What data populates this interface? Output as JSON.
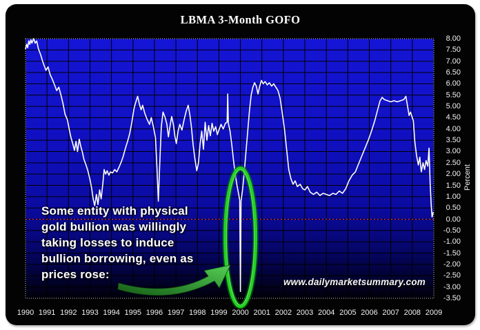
{
  "watermark": {
    "text": "www.dailymarketsummary.com"
  },
  "annotation": {
    "lines": [
      "Some entity with physical",
      "gold bullion was willingly",
      "taking losses to induce",
      "bullion borrowing, even as",
      "prices rose:"
    ],
    "ellipse": {
      "year": 2000.0,
      "value": -0.8,
      "color": "#22d122",
      "glow_color": "#0c6e0c"
    },
    "arrow_color_dark": "#155c15",
    "arrow_color_light": "#55cf55"
  },
  "chart_data": {
    "type": "line",
    "title": "LBMA 3-Month GOFO",
    "xlabel": "",
    "ylabel": "Percent",
    "xlim": [
      1990,
      2009
    ],
    "ylim": [
      -3.5,
      8.0
    ],
    "grid": true,
    "legend": "none",
    "line_color": "#ffffff",
    "grid_color": "#000000",
    "zero_line": {
      "value": 0.0,
      "color": "#ff2a2a",
      "style": "dotted"
    },
    "plot_border_color": "#c8c8c8",
    "plot_bg_stops": [
      [
        "0",
        "#1515d6"
      ],
      [
        "0.4",
        "#1010c0"
      ],
      [
        "0.65",
        "#0b0ba0"
      ],
      [
        "0.78",
        "#070778"
      ],
      [
        "0.88",
        "#030347"
      ],
      [
        "0.96",
        "#01011e"
      ],
      [
        "1",
        "#00000a"
      ]
    ],
    "x_ticks": [
      "1990",
      "1991",
      "1992",
      "1993",
      "1994",
      "1995",
      "1996",
      "1997",
      "1998",
      "1999",
      "2000",
      "2001",
      "2002",
      "2003",
      "2004",
      "2005",
      "2006",
      "2007",
      "2008",
      "2009"
    ],
    "y_ticks": [
      "8.00",
      "7.50",
      "7.00",
      "6.50",
      "6.00",
      "5.50",
      "5.00",
      "4.50",
      "4.00",
      "3.50",
      "3.00",
      "2.50",
      "2.00",
      "1.50",
      "1.00",
      "0.50",
      "0.00",
      "-0.50",
      "-1.00",
      "-1.50",
      "-2.00",
      "-2.50",
      "-3.00",
      "-3.50"
    ],
    "y_tick_step": 0.5,
    "series": [
      {
        "name": "LBMA 3-Month GOFO",
        "points": [
          [
            1990.0,
            7.55
          ],
          [
            1990.05,
            7.75
          ],
          [
            1990.1,
            7.6
          ],
          [
            1990.15,
            7.9
          ],
          [
            1990.2,
            7.75
          ],
          [
            1990.25,
            7.95
          ],
          [
            1990.3,
            7.8
          ],
          [
            1990.38,
            8.0
          ],
          [
            1990.45,
            7.8
          ],
          [
            1990.52,
            7.9
          ],
          [
            1990.6,
            7.55
          ],
          [
            1990.7,
            7.3
          ],
          [
            1990.78,
            7.05
          ],
          [
            1990.85,
            6.85
          ],
          [
            1990.95,
            6.6
          ],
          [
            1991.05,
            6.75
          ],
          [
            1991.15,
            6.4
          ],
          [
            1991.25,
            6.2
          ],
          [
            1991.35,
            5.95
          ],
          [
            1991.45,
            5.7
          ],
          [
            1991.55,
            5.85
          ],
          [
            1991.65,
            5.5
          ],
          [
            1991.75,
            5.1
          ],
          [
            1991.84,
            4.65
          ],
          [
            1991.95,
            4.4
          ],
          [
            1992.05,
            3.9
          ],
          [
            1992.12,
            3.6
          ],
          [
            1992.2,
            3.35
          ],
          [
            1992.28,
            3.05
          ],
          [
            1992.35,
            3.45
          ],
          [
            1992.42,
            3.0
          ],
          [
            1992.5,
            3.55
          ],
          [
            1992.58,
            3.2
          ],
          [
            1992.65,
            2.95
          ],
          [
            1992.72,
            2.65
          ],
          [
            1992.8,
            2.45
          ],
          [
            1992.9,
            2.15
          ],
          [
            1993.0,
            1.75
          ],
          [
            1993.08,
            1.35
          ],
          [
            1993.15,
            0.9
          ],
          [
            1993.22,
            0.6
          ],
          [
            1993.3,
            1.1
          ],
          [
            1993.37,
            0.65
          ],
          [
            1993.45,
            1.3
          ],
          [
            1993.52,
            0.9
          ],
          [
            1993.6,
            1.6
          ],
          [
            1993.66,
            2.2
          ],
          [
            1993.73,
            2.0
          ],
          [
            1993.8,
            2.15
          ],
          [
            1993.88,
            1.95
          ],
          [
            1993.95,
            2.1
          ],
          [
            1994.05,
            2.05
          ],
          [
            1994.15,
            2.2
          ],
          [
            1994.25,
            2.1
          ],
          [
            1994.35,
            2.3
          ],
          [
            1994.46,
            2.55
          ],
          [
            1994.55,
            2.8
          ],
          [
            1994.65,
            3.15
          ],
          [
            1994.75,
            3.45
          ],
          [
            1994.85,
            3.8
          ],
          [
            1994.95,
            4.3
          ],
          [
            1995.05,
            4.9
          ],
          [
            1995.12,
            5.15
          ],
          [
            1995.22,
            5.45
          ],
          [
            1995.3,
            5.1
          ],
          [
            1995.38,
            4.85
          ],
          [
            1995.45,
            5.05
          ],
          [
            1995.55,
            4.7
          ],
          [
            1995.65,
            4.45
          ],
          [
            1995.77,
            4.2
          ],
          [
            1995.85,
            4.5
          ],
          [
            1995.95,
            4.1
          ],
          [
            1996.05,
            3.6
          ],
          [
            1996.12,
            2.2
          ],
          [
            1996.18,
            0.8
          ],
          [
            1996.25,
            2.5
          ],
          [
            1996.32,
            4.1
          ],
          [
            1996.4,
            4.75
          ],
          [
            1996.5,
            4.5
          ],
          [
            1996.58,
            4.2
          ],
          [
            1996.65,
            3.65
          ],
          [
            1996.72,
            4.1
          ],
          [
            1996.8,
            4.55
          ],
          [
            1996.88,
            4.2
          ],
          [
            1996.95,
            3.7
          ],
          [
            1997.02,
            3.35
          ],
          [
            1997.1,
            3.9
          ],
          [
            1997.18,
            4.2
          ],
          [
            1997.28,
            3.95
          ],
          [
            1997.38,
            4.4
          ],
          [
            1997.48,
            4.8
          ],
          [
            1997.57,
            5.05
          ],
          [
            1997.65,
            4.6
          ],
          [
            1997.72,
            4.1
          ],
          [
            1997.8,
            3.3
          ],
          [
            1997.88,
            2.7
          ],
          [
            1997.97,
            2.15
          ],
          [
            1998.05,
            2.5
          ],
          [
            1998.12,
            3.3
          ],
          [
            1998.2,
            3.9
          ],
          [
            1998.28,
            3.1
          ],
          [
            1998.36,
            4.3
          ],
          [
            1998.44,
            3.5
          ],
          [
            1998.52,
            4.15
          ],
          [
            1998.6,
            3.7
          ],
          [
            1998.68,
            4.25
          ],
          [
            1998.76,
            3.9
          ],
          [
            1998.85,
            4.1
          ],
          [
            1998.93,
            3.75
          ],
          [
            1999.0,
            3.95
          ],
          [
            1999.1,
            4.2
          ],
          [
            1999.2,
            4.0
          ],
          [
            1999.3,
            4.25
          ],
          [
            1999.38,
            4.3
          ],
          [
            1999.41,
            5.55
          ],
          [
            1999.44,
            4.25
          ],
          [
            1999.52,
            3.9
          ],
          [
            1999.6,
            3.3
          ],
          [
            1999.68,
            2.6
          ],
          [
            1999.76,
            2.0
          ],
          [
            1999.84,
            1.5
          ],
          [
            1999.92,
            1.1
          ],
          [
            1999.97,
            0.85
          ],
          [
            2000.0,
            -3.2
          ],
          [
            2000.03,
            0.8
          ],
          [
            2000.1,
            1.3
          ],
          [
            2000.18,
            2.1
          ],
          [
            2000.26,
            3.0
          ],
          [
            2000.34,
            3.9
          ],
          [
            2000.42,
            4.8
          ],
          [
            2000.5,
            5.5
          ],
          [
            2000.58,
            5.85
          ],
          [
            2000.66,
            6.05
          ],
          [
            2000.74,
            5.9
          ],
          [
            2000.82,
            5.55
          ],
          [
            2000.9,
            5.9
          ],
          [
            2000.98,
            6.15
          ],
          [
            2001.06,
            6.0
          ],
          [
            2001.15,
            6.1
          ],
          [
            2001.25,
            5.95
          ],
          [
            2001.35,
            6.05
          ],
          [
            2001.45,
            5.9
          ],
          [
            2001.55,
            6.0
          ],
          [
            2001.65,
            5.85
          ],
          [
            2001.75,
            5.7
          ],
          [
            2001.85,
            5.35
          ],
          [
            2001.95,
            4.7
          ],
          [
            2002.05,
            4.0
          ],
          [
            2002.15,
            3.1
          ],
          [
            2002.25,
            2.2
          ],
          [
            2002.35,
            1.8
          ],
          [
            2002.45,
            1.55
          ],
          [
            2002.55,
            1.7
          ],
          [
            2002.65,
            1.45
          ],
          [
            2002.78,
            1.55
          ],
          [
            2002.9,
            1.35
          ],
          [
            2003.0,
            1.3
          ],
          [
            2003.12,
            1.45
          ],
          [
            2003.25,
            1.2
          ],
          [
            2003.4,
            1.1
          ],
          [
            2003.55,
            1.2
          ],
          [
            2003.7,
            1.05
          ],
          [
            2003.85,
            1.15
          ],
          [
            2004.0,
            1.1
          ],
          [
            2004.15,
            1.05
          ],
          [
            2004.3,
            1.15
          ],
          [
            2004.45,
            1.1
          ],
          [
            2004.6,
            1.25
          ],
          [
            2004.75,
            1.15
          ],
          [
            2004.9,
            1.35
          ],
          [
            2005.05,
            1.7
          ],
          [
            2005.2,
            1.95
          ],
          [
            2005.35,
            2.1
          ],
          [
            2005.5,
            2.45
          ],
          [
            2005.65,
            2.8
          ],
          [
            2005.8,
            3.15
          ],
          [
            2005.95,
            3.5
          ],
          [
            2006.1,
            3.9
          ],
          [
            2006.25,
            4.35
          ],
          [
            2006.4,
            4.9
          ],
          [
            2006.5,
            5.25
          ],
          [
            2006.6,
            5.4
          ],
          [
            2006.7,
            5.3
          ],
          [
            2006.85,
            5.25
          ],
          [
            2007.0,
            5.2
          ],
          [
            2007.15,
            5.25
          ],
          [
            2007.3,
            5.2
          ],
          [
            2007.45,
            5.25
          ],
          [
            2007.6,
            5.3
          ],
          [
            2007.7,
            5.45
          ],
          [
            2007.78,
            5.0
          ],
          [
            2007.85,
            4.6
          ],
          [
            2007.92,
            4.75
          ],
          [
            2008.0,
            4.5
          ],
          [
            2008.05,
            4.35
          ],
          [
            2008.12,
            3.4
          ],
          [
            2008.2,
            2.8
          ],
          [
            2008.28,
            2.4
          ],
          [
            2008.35,
            2.75
          ],
          [
            2008.42,
            2.1
          ],
          [
            2008.5,
            2.5
          ],
          [
            2008.57,
            2.2
          ],
          [
            2008.64,
            2.6
          ],
          [
            2008.72,
            2.35
          ],
          [
            2008.78,
            3.15
          ],
          [
            2008.83,
            1.6
          ],
          [
            2008.88,
            0.6
          ],
          [
            2008.92,
            0.1
          ],
          [
            2008.97,
            0.3
          ]
        ]
      }
    ]
  }
}
